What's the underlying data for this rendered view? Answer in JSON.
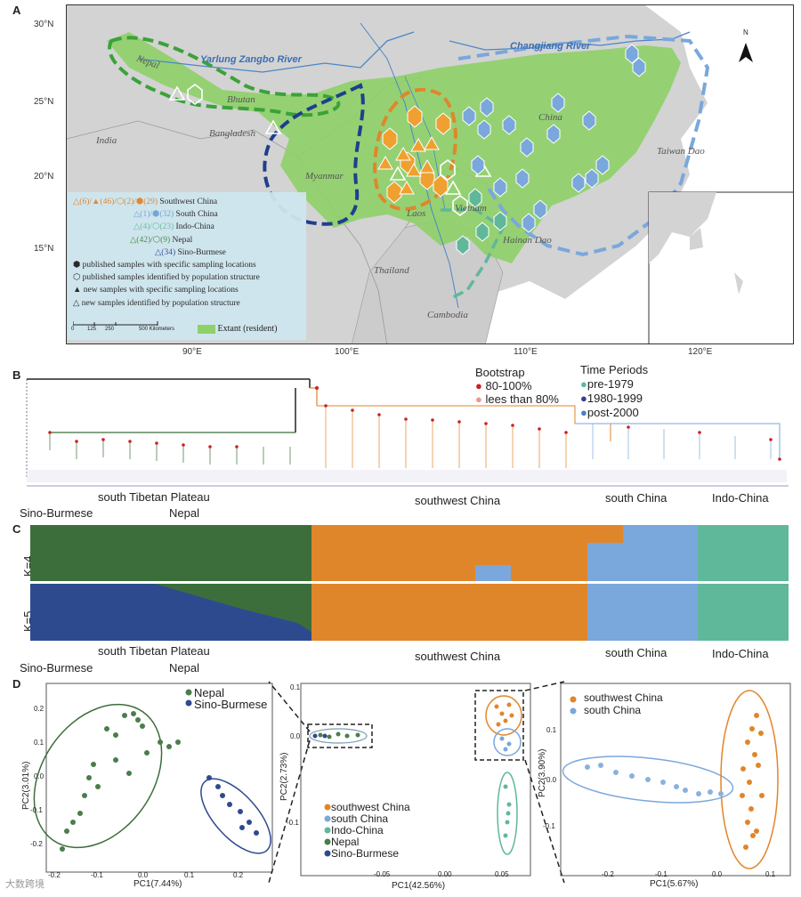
{
  "panels": {
    "a": "A",
    "b": "B",
    "c": "C",
    "d": "D"
  },
  "map": {
    "lat_labels": [
      "30°N",
      "25°N",
      "20°N",
      "15°N"
    ],
    "lon_labels": [
      "90°E",
      "100°E",
      "110°E",
      "120°E"
    ],
    "rivers": [
      "Yarlung Zangbo River",
      "Changjiang River"
    ],
    "places": [
      "Nepal",
      "Bhutan",
      "India",
      "Bangladesh",
      "Myanmar",
      "China",
      "Laos",
      "Vietnam",
      "Thailand",
      "Cambodia",
      "Hainan Dao",
      "Taiwan Dao"
    ],
    "north": "N",
    "legend": {
      "rows": [
        {
          "prefix": "△(6)/▲(46)/⬡(2)/⬢(29)",
          "label": "Southwest China",
          "color": "#e8912a"
        },
        {
          "prefix": "△(1)/⬢(32)",
          "label": "South China",
          "color": "#6fa3d8"
        },
        {
          "prefix": "△(4)/⬡(23)",
          "label": "Indo-China",
          "color": "#5cbf9a"
        },
        {
          "prefix": "△(42)/⬡(9)",
          "label": "Nepal",
          "color": "#3e8e3e"
        },
        {
          "prefix": "△(34)",
          "label": "Sino-Burmese",
          "color": "#2f4f9c"
        }
      ],
      "symbols": [
        "published samples with specific sampling locations",
        "published samples identified by population structure",
        "new samples with specific sampling locations",
        "new samples identified by population structure"
      ],
      "scale": [
        "0",
        "125",
        "250",
        "500 Kilometers"
      ],
      "extant": "Extant (resident)"
    }
  },
  "tree": {
    "bootstrap_title": "Bootstrap",
    "bootstrap_high": "80-100%",
    "bootstrap_low": "lees than 80%",
    "periods_title": "Time Periods",
    "periods": [
      "pre-1979",
      "1980-1999",
      "post-2000"
    ],
    "groups_row1": [
      "south Tibetan Plateau",
      "southwest China",
      "south China",
      "Indo-China"
    ],
    "groups_row2": [
      "Sino-Burmese",
      "Nepal"
    ]
  },
  "structure": {
    "k4": "K=4",
    "k5": "K=5",
    "groups_row1": [
      "south Tibetan Plateau",
      "southwest China",
      "south China",
      "Indo-China"
    ],
    "groups_row2": [
      "Sino-Burmese",
      "Nepal"
    ]
  },
  "pca": {
    "left": {
      "xlabel": "PC1(7.44%)",
      "ylabel": "PC2(3.01%)",
      "legend": [
        "Nepal",
        "Sino-Burmese"
      ],
      "xticks": [
        "-0.2",
        "-0.1",
        "0.0",
        "0.1",
        "0.2"
      ],
      "yticks": [
        "0.2",
        "0.1",
        "0.0",
        "-0.1",
        "-0.2"
      ]
    },
    "middle": {
      "xlabel": "PC1(42.56%)",
      "ylabel": "PC2(2.73%)",
      "legend": [
        "southwest China",
        "south China",
        "Indo-China",
        "Nepal",
        "Sino-Burmese"
      ],
      "xticks": [
        "-0.05",
        "0.00",
        "0.05"
      ],
      "yticks": [
        "0.1",
        "0.0",
        "-0.1"
      ]
    },
    "right": {
      "xlabel": "PC1(5.67%)",
      "ylabel": "PC2(3.90%)",
      "legend": [
        "southwest China",
        "south China"
      ],
      "xticks": [
        "-0.2",
        "-0.1",
        "0.0",
        "0.1"
      ],
      "yticks": [
        "0.1",
        "0.0",
        "-0.1"
      ]
    }
  },
  "colors": {
    "southwest": "#e0862a",
    "south": "#7aa7dc",
    "indo": "#5fb89a",
    "nepal": "#3c6e3c",
    "sino": "#2e4a8f",
    "land": "#8fd06a",
    "sea": "#ffffff",
    "bootstrap_high": "#cc2222",
    "bootstrap_low": "#e99a8a",
    "pre1979": "#5fb89a",
    "p1980": "#3c3c8c",
    "post2000": "#4a7fc1"
  },
  "watermark": "大数跨境"
}
